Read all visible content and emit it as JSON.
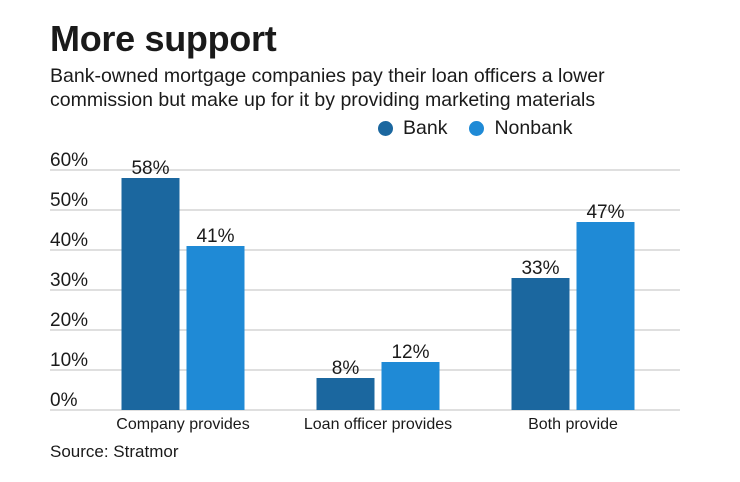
{
  "header": {
    "title": "More support",
    "subtitle_line1": "Bank-owned mortgage companies pay their loan officers a lower",
    "subtitle_line2": "commission but make up for it by providing marketing materials"
  },
  "colors": {
    "bank": "#1b679f",
    "nonbank": "#1f8ad6",
    "grid": "#bfbfbf",
    "text": "#1a1a1a"
  },
  "footer": {
    "source": "Source: Stratmor"
  },
  "chart_data": {
    "type": "bar",
    "title": "More support",
    "xlabel": "",
    "ylabel": "",
    "ylim": [
      0,
      60
    ],
    "yticks": [
      0,
      10,
      20,
      30,
      40,
      50,
      60
    ],
    "ytick_labels": [
      "0%",
      "10%",
      "20%",
      "30%",
      "40%",
      "50%",
      "60%"
    ],
    "grid": true,
    "legend_position": "top-right",
    "categories": [
      "Company provides",
      "Loan officer provides",
      "Both provide"
    ],
    "series": [
      {
        "name": "Bank",
        "values": [
          58,
          8,
          33
        ],
        "labels": [
          "58%",
          "8%",
          "33%"
        ]
      },
      {
        "name": "Nonbank",
        "values": [
          41,
          12,
          47
        ],
        "labels": [
          "41%",
          "12%",
          "47%"
        ]
      }
    ]
  }
}
